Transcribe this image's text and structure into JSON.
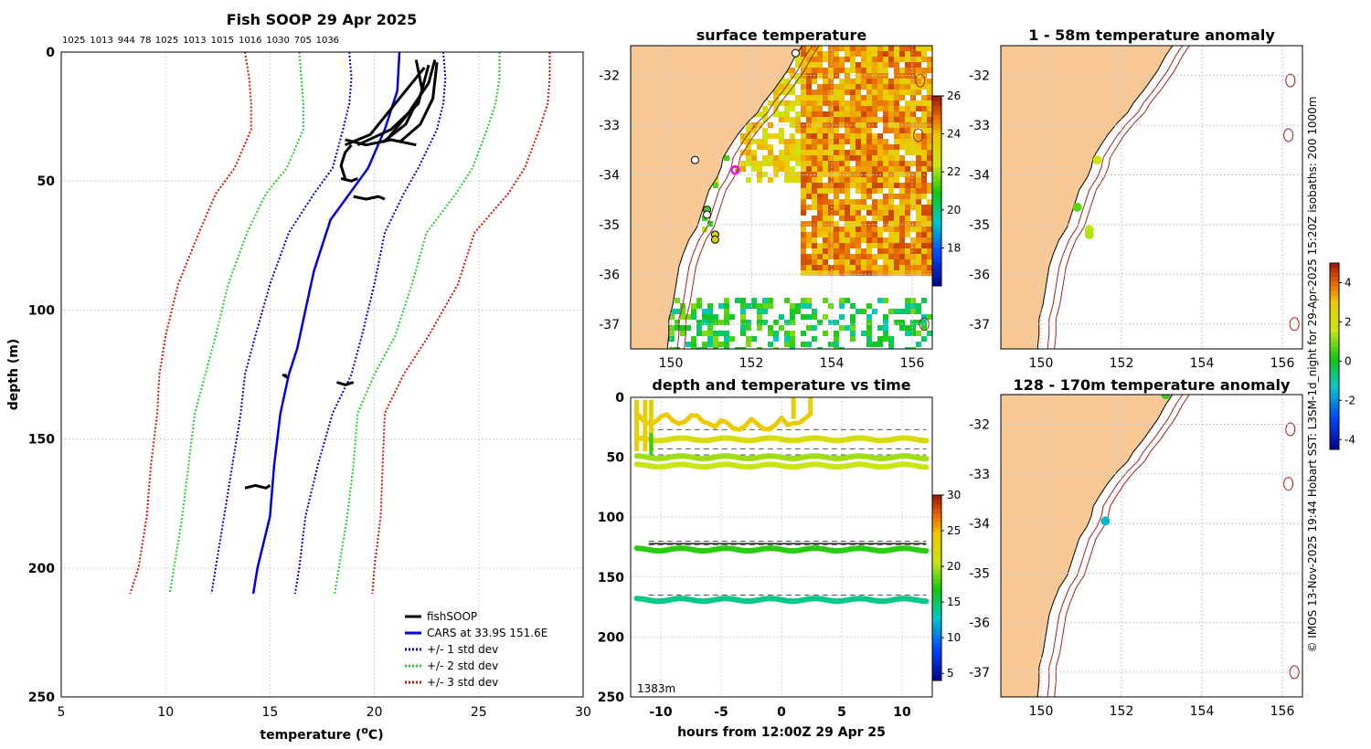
{
  "chart_data": [
    {
      "type": "line",
      "title": "Fish SOOP 29 Apr 2025",
      "top_labels": [
        "1025",
        "1013",
        "944",
        "78",
        "1025",
        "1013",
        "1015",
        "1016",
        "1030",
        "705",
        "1036"
      ],
      "xlabel": "temperature (°C)",
      "ylabel": "depth (m)",
      "xlim": [
        5,
        30
      ],
      "ylim": [
        250,
        0
      ],
      "xticks": [
        "5",
        "10",
        "15",
        "20",
        "25",
        "30"
      ],
      "yticks": [
        "0",
        "50",
        "100",
        "150",
        "200",
        "250"
      ],
      "legend": [
        "fishSOOP",
        "CARS at 33.9S 151.6E",
        "+/- 1 std dev",
        "+/- 2 std dev",
        "+/- 3 std dev"
      ],
      "legend_location": "bottom-right",
      "colors": {
        "fishsoop": "#000000",
        "cars": "#0000dd",
        "std1": "#0000dd",
        "std2": "#22cc22",
        "std3": "#dd1100"
      },
      "series": [
        {
          "name": "CARS at 33.9S 151.6E",
          "depth": [
            0,
            15,
            30,
            45,
            55,
            65,
            85,
            100,
            115,
            125,
            140,
            160,
            180,
            200,
            210
          ],
          "temp": [
            21.2,
            21.1,
            20.5,
            19.7,
            18.8,
            17.9,
            17.1,
            16.7,
            16.3,
            15.9,
            15.5,
            15.2,
            15.0,
            14.4,
            14.2
          ]
        },
        {
          "name": "+1 std",
          "depth": [
            0,
            10,
            20,
            30,
            45,
            55,
            70,
            90,
            110,
            125,
            140,
            160,
            180,
            200,
            210
          ],
          "temp": [
            23.3,
            23.4,
            23.3,
            23.0,
            22.1,
            21.4,
            20.5,
            20.0,
            19.4,
            18.9,
            18.0,
            17.3,
            16.7,
            16.4,
            16.2
          ]
        },
        {
          "name": "-1 std",
          "depth": [
            0,
            10,
            20,
            30,
            45,
            55,
            70,
            90,
            110,
            125,
            140,
            160,
            180,
            200,
            210
          ],
          "temp": [
            18.8,
            18.9,
            18.8,
            18.5,
            18.0,
            17.1,
            15.9,
            15.0,
            14.3,
            13.8,
            13.6,
            13.2,
            12.8,
            12.4,
            12.2
          ]
        },
        {
          "name": "+2 std",
          "depth": [
            0,
            10,
            20,
            30,
            45,
            55,
            70,
            90,
            110,
            125,
            140,
            160,
            180,
            200,
            210
          ],
          "temp": [
            26.0,
            26.0,
            25.8,
            25.4,
            24.7,
            23.9,
            22.5,
            21.8,
            21.0,
            20.0,
            19.2,
            19.0,
            18.7,
            18.3,
            18.1
          ]
        },
        {
          "name": "-2 std",
          "depth": [
            0,
            10,
            20,
            30,
            45,
            55,
            70,
            90,
            110,
            125,
            140,
            160,
            180,
            200,
            210
          ],
          "temp": [
            16.4,
            16.5,
            16.6,
            16.6,
            15.8,
            14.8,
            13.9,
            13.0,
            12.4,
            11.9,
            11.4,
            11.1,
            10.8,
            10.4,
            10.2
          ]
        },
        {
          "name": "+3 std",
          "depth": [
            0,
            10,
            20,
            30,
            45,
            55,
            70,
            90,
            110,
            125,
            140,
            160,
            180,
            200,
            210
          ],
          "temp": [
            28.4,
            28.4,
            28.3,
            27.9,
            27.2,
            26.4,
            24.8,
            24.0,
            22.6,
            21.4,
            20.5,
            20.4,
            20.3,
            20.0,
            19.9
          ]
        },
        {
          "name": "-3 std",
          "depth": [
            0,
            10,
            20,
            30,
            45,
            55,
            70,
            90,
            110,
            125,
            140,
            160,
            180,
            200,
            210
          ],
          "temp": [
            13.8,
            14.0,
            14.1,
            14.1,
            13.3,
            12.4,
            11.6,
            10.6,
            10.0,
            9.7,
            9.6,
            9.3,
            9.1,
            8.7,
            8.3
          ]
        }
      ],
      "fishsoop_segments": [
        {
          "depth": [
            3,
            15,
            28,
            35
          ],
          "temp": [
            22.0,
            22.3,
            21.5,
            20.4
          ]
        },
        {
          "depth": [
            3,
            12,
            24,
            34
          ],
          "temp": [
            22.9,
            22.6,
            21.6,
            20.6
          ]
        },
        {
          "depth": [
            4,
            18,
            28,
            35
          ],
          "temp": [
            23.0,
            22.8,
            22.2,
            21.2
          ]
        },
        {
          "depth": [
            5,
            20,
            30,
            36
          ],
          "temp": [
            22.6,
            22.1,
            20.8,
            19.2
          ]
        },
        {
          "depth": [
            6,
            22,
            32,
            36
          ],
          "temp": [
            22.4,
            20.8,
            19.8,
            18.6
          ]
        },
        {
          "depth": [
            34,
            36,
            34,
            36
          ],
          "temp": [
            18.6,
            19.6,
            20.8,
            22.0
          ]
        },
        {
          "depth": [
            36,
            39,
            44,
            49
          ],
          "temp": [
            18.9,
            18.6,
            18.4,
            18.6
          ]
        },
        {
          "depth": [
            49,
            50,
            49
          ],
          "temp": [
            18.4,
            18.9,
            19.2
          ]
        },
        {
          "depth": [
            56,
            57,
            56,
            57
          ],
          "temp": [
            19.0,
            19.6,
            20.2,
            20.5
          ]
        },
        {
          "depth": [
            125,
            126,
            125
          ],
          "temp": [
            15.6,
            15.8,
            15.7
          ]
        },
        {
          "depth": [
            128,
            129,
            128
          ],
          "temp": [
            18.2,
            18.6,
            19.0
          ]
        },
        {
          "depth": [
            169,
            168,
            169,
            168
          ],
          "temp": [
            13.8,
            14.3,
            14.8,
            15.0
          ]
        }
      ]
    },
    {
      "type": "heatmap",
      "title": "surface temperature",
      "xlim": [
        149.0,
        156.5
      ],
      "ylim": [
        -37.5,
        -31.4
      ],
      "xticks": [
        "150",
        "152",
        "154",
        "156"
      ],
      "yticks": [
        "-32",
        "-33",
        "-34",
        "-35",
        "-36",
        "-37"
      ],
      "colorbar_ticks": [
        "26",
        "24",
        "22",
        "20",
        "18"
      ],
      "colorbar_range": [
        16,
        26
      ],
      "markers": [
        {
          "lon": 151.6,
          "lat": -33.9,
          "style": "magenta-ring"
        },
        {
          "lon": 150.9,
          "lat": -34.7,
          "style": "green"
        },
        {
          "lon": 151.1,
          "lat": -35.2,
          "style": "yellow"
        },
        {
          "lon": 151.1,
          "lat": -35.3,
          "style": "yellow"
        },
        {
          "lon": 150.6,
          "lat": -33.7,
          "style": "white-ring"
        },
        {
          "lon": 150.9,
          "lat": -34.8,
          "style": "white-ring"
        },
        {
          "lon": 153.1,
          "lat": -31.55,
          "style": "white-ring"
        }
      ]
    },
    {
      "type": "scatter",
      "title": "depth and temperature vs time",
      "xlabel": "hours from 12:00Z 29 Apr 25",
      "xlim": [
        -12.5,
        12.5
      ],
      "ylim": [
        250,
        0
      ],
      "xticks": [
        "-10",
        "-5",
        "0",
        "5",
        "10"
      ],
      "yticks": [
        "0",
        "50",
        "100",
        "150",
        "200",
        "250"
      ],
      "colorbar_ticks": [
        "30",
        "25",
        "20",
        "15",
        "10",
        "5"
      ],
      "colorbar_range": [
        4,
        30
      ],
      "annotation": "1383m",
      "dashed_depths": [
        27,
        43,
        48,
        120,
        123,
        165
      ],
      "solid_depths": [
        50,
        122
      ],
      "bands": [
        {
          "depth": 35,
          "temp": 22.5
        },
        {
          "depth": 50,
          "temp": 20.0
        },
        {
          "depth": 57,
          "temp": 21.0
        },
        {
          "depth": 127,
          "temp": 17.5
        },
        {
          "depth": 169,
          "temp": 14.5
        }
      ]
    },
    {
      "type": "scatter",
      "title": "1 - 58m temperature anomaly",
      "xlim": [
        149.0,
        156.5
      ],
      "ylim": [
        -37.5,
        -31.4
      ],
      "xticks": [
        "150",
        "152",
        "154",
        "156"
      ],
      "yticks": [
        "-32",
        "-33",
        "-34",
        "-35",
        "-36",
        "-37"
      ],
      "points": [
        {
          "lon": 151.4,
          "lat": -33.7,
          "anomaly": 1.8
        },
        {
          "lon": 150.9,
          "lat": -34.65,
          "anomaly": 0.8
        },
        {
          "lon": 151.2,
          "lat": -35.1,
          "anomaly": 1.6
        },
        {
          "lon": 151.2,
          "lat": -35.2,
          "anomaly": 1.5
        }
      ]
    },
    {
      "type": "scatter",
      "title": "128 - 170m temperature anomaly",
      "xlim": [
        149.0,
        156.5
      ],
      "ylim": [
        -37.5,
        -31.4
      ],
      "xticks": [
        "150",
        "152",
        "154",
        "156"
      ],
      "yticks": [
        "-32",
        "-33",
        "-34",
        "-35",
        "-36",
        "-37"
      ],
      "points": [
        {
          "lon": 153.1,
          "lat": -31.4,
          "anomaly": 0.5
        },
        {
          "lon": 151.6,
          "lat": -33.95,
          "anomaly": -1.4
        }
      ],
      "colorbar_ticks": [
        "4",
        "2",
        "0",
        "-2",
        "-4"
      ],
      "colorbar_range": [
        -4.5,
        5
      ]
    }
  ],
  "side_caption": "© IMOS 13-Nov-2025 19:44 Hobart SST: L3SM-1d_night for 29-Apr-2025 15:20Z isobaths: 200  1000m",
  "colors": {
    "land": "#f8c896",
    "isobath": "#a02020",
    "grid": "#d0d0d0"
  }
}
